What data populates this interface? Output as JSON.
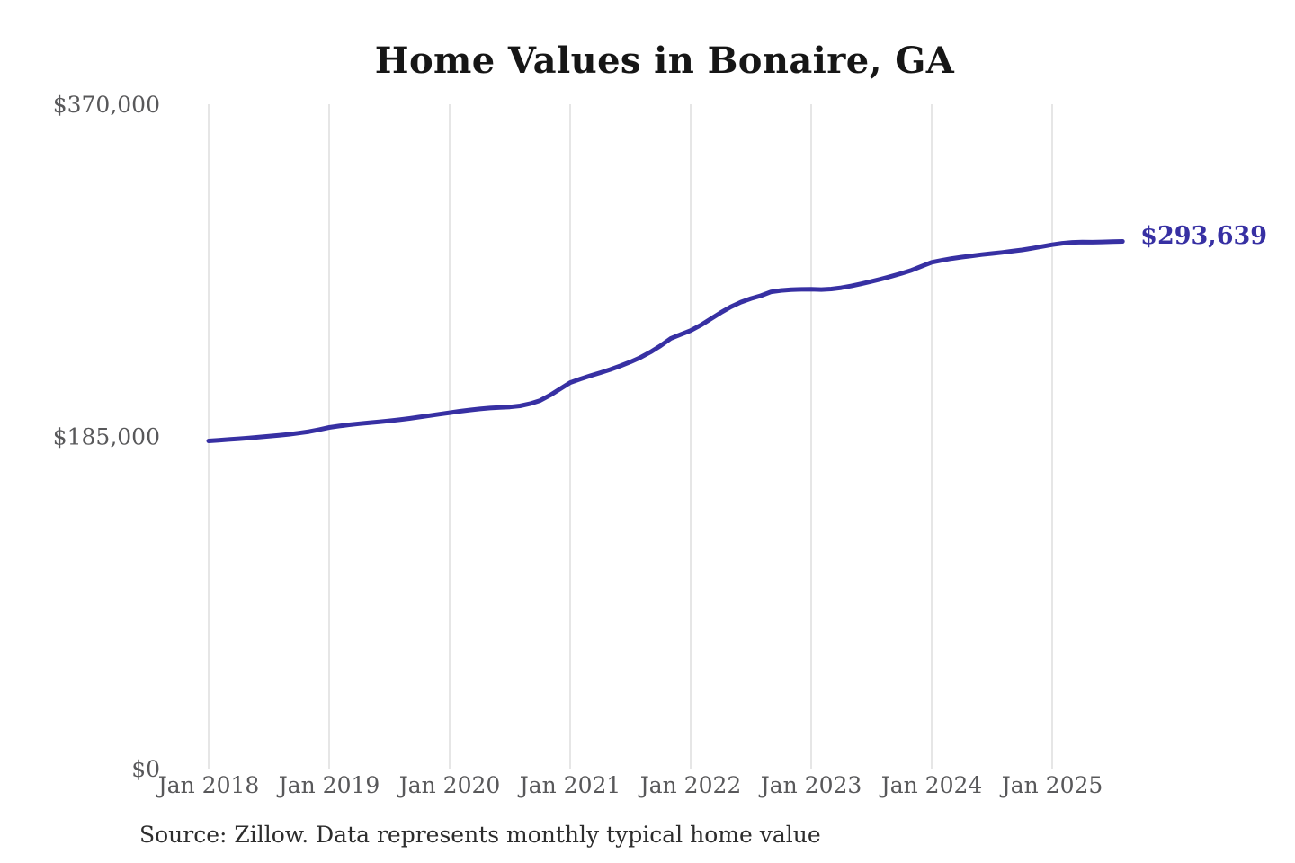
{
  "page": {
    "source_note": "Source: Zillow. Data represents monthly typical home value"
  },
  "chart_data": {
    "type": "line",
    "title": "Home Values in Bonaire, GA",
    "xlabel": "",
    "ylabel": "",
    "x_interval": "monthly",
    "x_start_month": "Jan 2018",
    "x_end_month": "Aug 2025",
    "x_tick_labels": [
      "Jan 2018",
      "Jan 2019",
      "Jan 2020",
      "Jan 2021",
      "Jan 2022",
      "Jan 2023",
      "Jan 2024",
      "Jan 2025"
    ],
    "y_ticks": [
      0,
      185000,
      370000
    ],
    "y_tick_labels": [
      "$0",
      "$185,000",
      "$370,000"
    ],
    "ylim": [
      0,
      370000
    ],
    "grid": "vertical-only",
    "legend": "none",
    "line_color": "#3730a3",
    "gridline_color": "#cccccc",
    "tick_label_color": "#58585a",
    "end_label": "$293,639",
    "end_value": 293639,
    "values": [
      182500,
      182900,
      183300,
      183700,
      184100,
      184600,
      185100,
      185600,
      186200,
      186900,
      187700,
      188800,
      190000,
      190800,
      191500,
      192100,
      192600,
      193100,
      193700,
      194300,
      195000,
      195800,
      196600,
      197400,
      198200,
      199000,
      199700,
      200300,
      200800,
      201100,
      201400,
      202000,
      203200,
      205000,
      208000,
      211500,
      215000,
      217000,
      218800,
      220500,
      222300,
      224300,
      226500,
      229000,
      232000,
      235500,
      239500,
      241800,
      244000,
      247000,
      250500,
      254000,
      257200,
      259800,
      261800,
      263400,
      265500,
      266300,
      266700,
      266900,
      267000,
      266800,
      267100,
      267800,
      268800,
      270000,
      271300,
      272700,
      274200,
      275800,
      277600,
      279800,
      282000,
      283100,
      284100,
      284900,
      285600,
      286300,
      286900,
      287500,
      288200,
      288900,
      289800,
      290800,
      291800,
      292600,
      293100,
      293300,
      293200,
      293350,
      293500,
      293639
    ]
  }
}
